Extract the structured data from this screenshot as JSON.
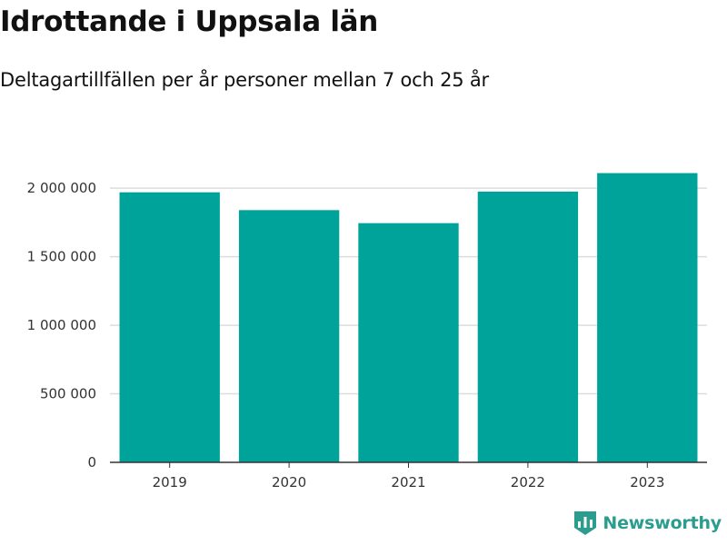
{
  "header": {
    "title": "Idrottande i Uppsala län",
    "subtitle": "Deltagartillfällen per år personer mellan 7 och 25 år"
  },
  "brand": {
    "name": "Newsworthy",
    "icon": "newsworthy-logo-icon",
    "color": "#2a9d8f"
  },
  "chart_data": {
    "type": "bar",
    "title": "Idrottande i Uppsala län",
    "subtitle": "Deltagartillfällen per år personer mellan 7 och 25 år",
    "xlabel": "",
    "ylabel": "",
    "categories": [
      "2019",
      "2020",
      "2021",
      "2022",
      "2023"
    ],
    "values": [
      1970000,
      1840000,
      1745000,
      1975000,
      2110000
    ],
    "ylim": [
      0,
      2200000
    ],
    "yticks": [
      0,
      500000,
      1000000,
      1500000,
      2000000
    ],
    "ytick_labels": [
      "0",
      "500 000",
      "1 000 000",
      "1 500 000",
      "2 000 000"
    ],
    "grid": true,
    "bar_color": "#00a39a",
    "grid_color": "#dddddd",
    "axis_color": "#333333"
  }
}
